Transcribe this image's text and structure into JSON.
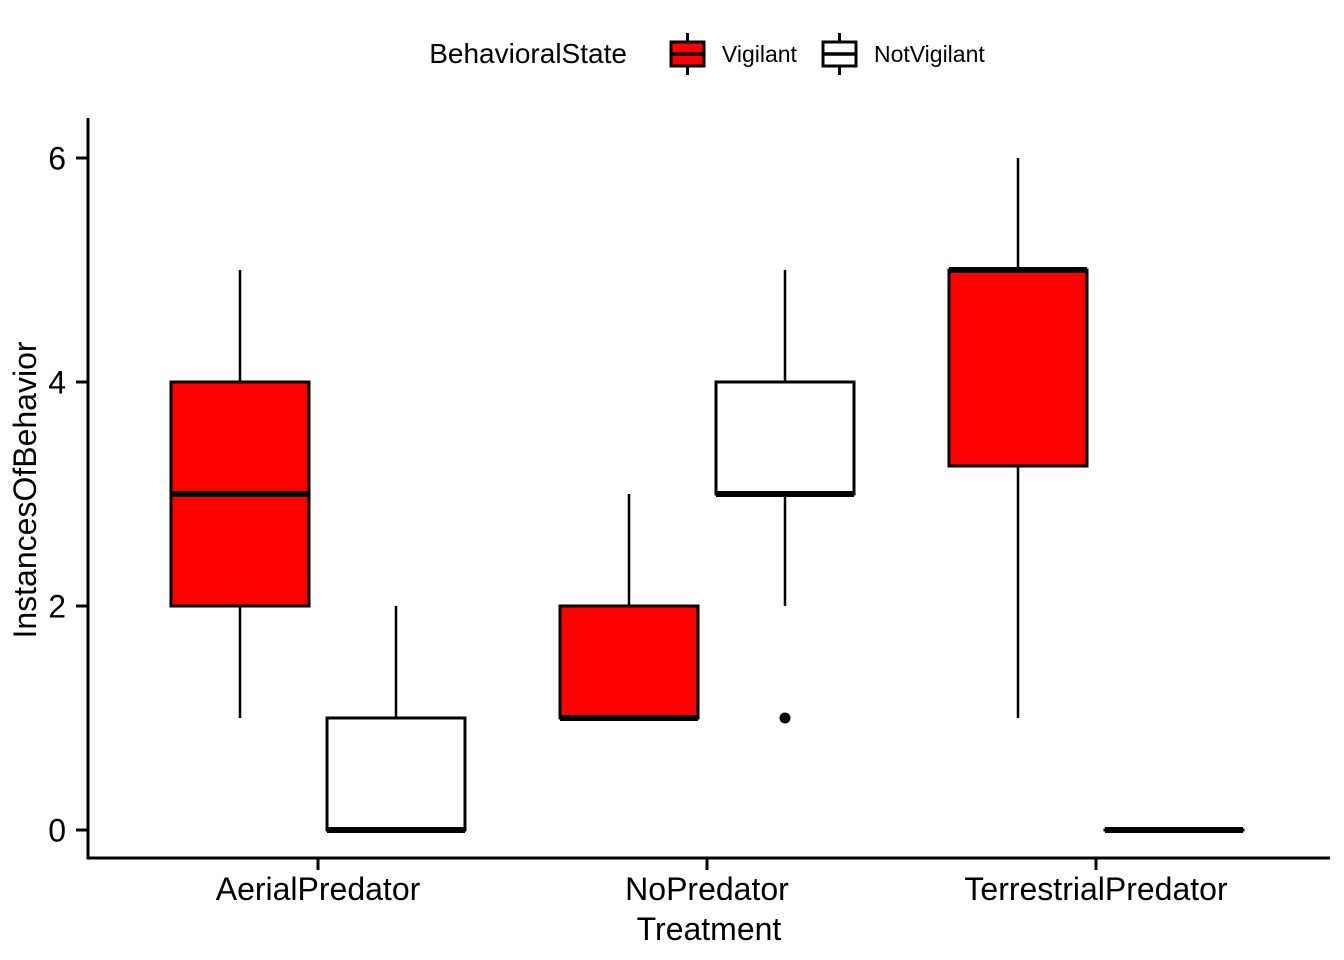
{
  "legend": {
    "title": "BehavioralState",
    "items": [
      {
        "label": "Vigilant",
        "fill": "#FF0000"
      },
      {
        "label": "NotVigilant",
        "fill": "#FFFFFF"
      }
    ]
  },
  "chart_data": {
    "type": "boxplot",
    "title": "",
    "xlabel": "Treatment",
    "ylabel": "InstancesOfBehavior",
    "categories": [
      "AerialPredator",
      "NoPredator",
      "TerrestrialPredator"
    ],
    "yticks": [
      0,
      2,
      4,
      6
    ],
    "ylim": [
      0,
      6
    ],
    "grid": "off",
    "legend_position": "top",
    "colors": {
      "box_stroke": "#000000",
      "axis": "#000000",
      "vigilant_fill": "#FF0000",
      "notvigilant_fill": "#FFFFFF",
      "outlier": "#000000"
    },
    "series": [
      {
        "name": "Vigilant",
        "fill": "#FF0000",
        "boxes": [
          {
            "category": "AerialPredator",
            "min": 1,
            "q1": 2,
            "median": 3,
            "q3": 4,
            "max": 5,
            "outliers": []
          },
          {
            "category": "NoPredator",
            "min": 1,
            "q1": 1,
            "median": 1,
            "q3": 2,
            "max": 3,
            "outliers": []
          },
          {
            "category": "TerrestrialPredator",
            "min": 1,
            "q1": 3.25,
            "median": 5,
            "q3": 5,
            "max": 6,
            "outliers": []
          }
        ]
      },
      {
        "name": "NotVigilant",
        "fill": "#FFFFFF",
        "boxes": [
          {
            "category": "AerialPredator",
            "min": 0,
            "q1": 0,
            "median": 0,
            "q3": 1,
            "max": 2,
            "outliers": []
          },
          {
            "category": "NoPredator",
            "min": 2,
            "q1": 3,
            "median": 3,
            "q3": 4,
            "max": 5,
            "outliers": [
              1
            ]
          },
          {
            "category": "TerrestrialPredator",
            "min": 0,
            "q1": 0,
            "median": 0,
            "q3": 0,
            "max": 0,
            "outliers": []
          }
        ]
      }
    ]
  }
}
